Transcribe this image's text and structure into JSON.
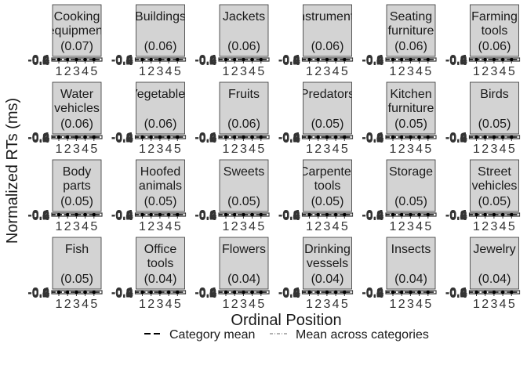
{
  "chart_data": {
    "type": "line",
    "layout": "facet-grid",
    "xlabel": "Ordinal Position",
    "ylabel": "Normalized RTs (ms)",
    "x": [
      1,
      2,
      3,
      4,
      5
    ],
    "x_tick_labels": [
      "1",
      "2",
      "3",
      "4",
      "5"
    ],
    "y_tick_labels": [
      "-0.4",
      "-0.2",
      "0.0",
      "0.2",
      "0.4"
    ],
    "ylim": [
      -0.4,
      0.4
    ],
    "grid": false,
    "legend_position": "bottom",
    "legend": [
      {
        "label": "Category mean",
        "style": "dashed",
        "color": "#000000"
      },
      {
        "label": "Mean across categories",
        "style": "dotdash",
        "color": "#999999"
      }
    ],
    "panels": [
      {
        "name": "Cooking equipment",
        "value_label": "(0.07)"
      },
      {
        "name": "Buildings",
        "value_label": "(0.06)"
      },
      {
        "name": "Jackets",
        "value_label": "(0.06)"
      },
      {
        "name": "Instruments",
        "value_label": "(0.06)"
      },
      {
        "name": "Seating furniture",
        "value_label": "(0.06)"
      },
      {
        "name": "Farming tools",
        "value_label": "(0.06)"
      },
      {
        "name": "Water vehicles",
        "value_label": "(0.06)"
      },
      {
        "name": "Vegetables",
        "value_label": "(0.06)"
      },
      {
        "name": "Fruits",
        "value_label": "(0.06)"
      },
      {
        "name": "Predators",
        "value_label": "(0.05)"
      },
      {
        "name": "Kitchen furniture",
        "value_label": "(0.05)"
      },
      {
        "name": "Birds",
        "value_label": "(0.05)"
      },
      {
        "name": "Body parts",
        "value_label": "(0.05)"
      },
      {
        "name": "Hoofed animals",
        "value_label": "(0.05)"
      },
      {
        "name": "Sweets",
        "value_label": "(0.05)"
      },
      {
        "name": "Carpenter tools",
        "value_label": "(0.05)"
      },
      {
        "name": "Storage",
        "value_label": "(0.05)"
      },
      {
        "name": "Street vehicles",
        "value_label": "(0.05)"
      },
      {
        "name": "Fish",
        "value_label": "(0.05)"
      },
      {
        "name": "Office tools",
        "value_label": "(0.04)"
      },
      {
        "name": "Flowers",
        "value_label": "(0.04)"
      },
      {
        "name": "Drinking vessels",
        "value_label": "(0.04)"
      },
      {
        "name": "Insects",
        "value_label": "(0.04)"
      },
      {
        "name": "Jewelry",
        "value_label": "(0.04)"
      }
    ]
  }
}
